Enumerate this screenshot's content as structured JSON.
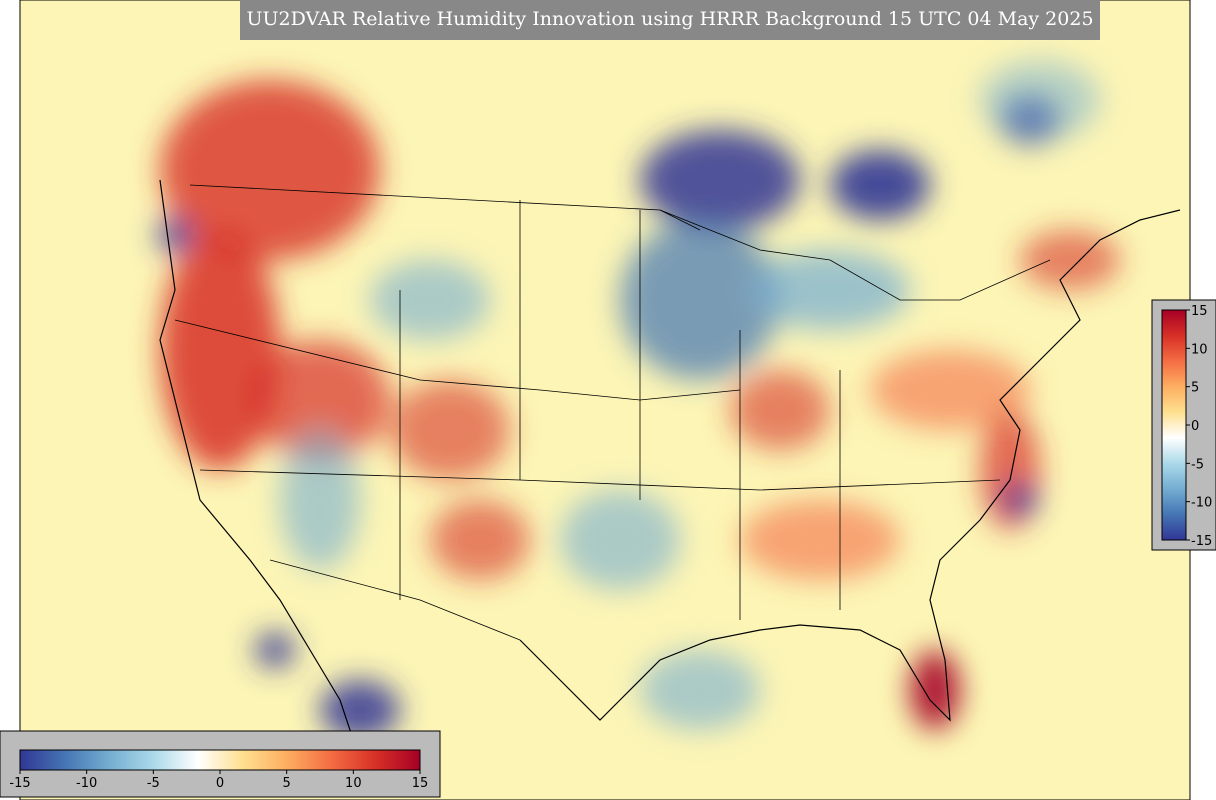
{
  "title": "UU2DVAR Relative Humidity Innovation using HRRR Background 15 UTC 04 May 2025",
  "colorbars": [
    {
      "lim": [
        -15,
        15
      ],
      "ticks": [
        -15,
        -10,
        -5,
        0,
        5,
        10,
        15
      ]
    },
    {
      "lim": [
        -15,
        15
      ],
      "ticks": [
        -15,
        -10,
        -5,
        0,
        5,
        10,
        15
      ]
    }
  ],
  "colormap": [
    "#313695",
    "#4575b4",
    "#74add1",
    "#abd9e9",
    "#ffffff",
    "#fee090",
    "#fdae61",
    "#f46d43",
    "#d73027",
    "#a50026"
  ]
}
